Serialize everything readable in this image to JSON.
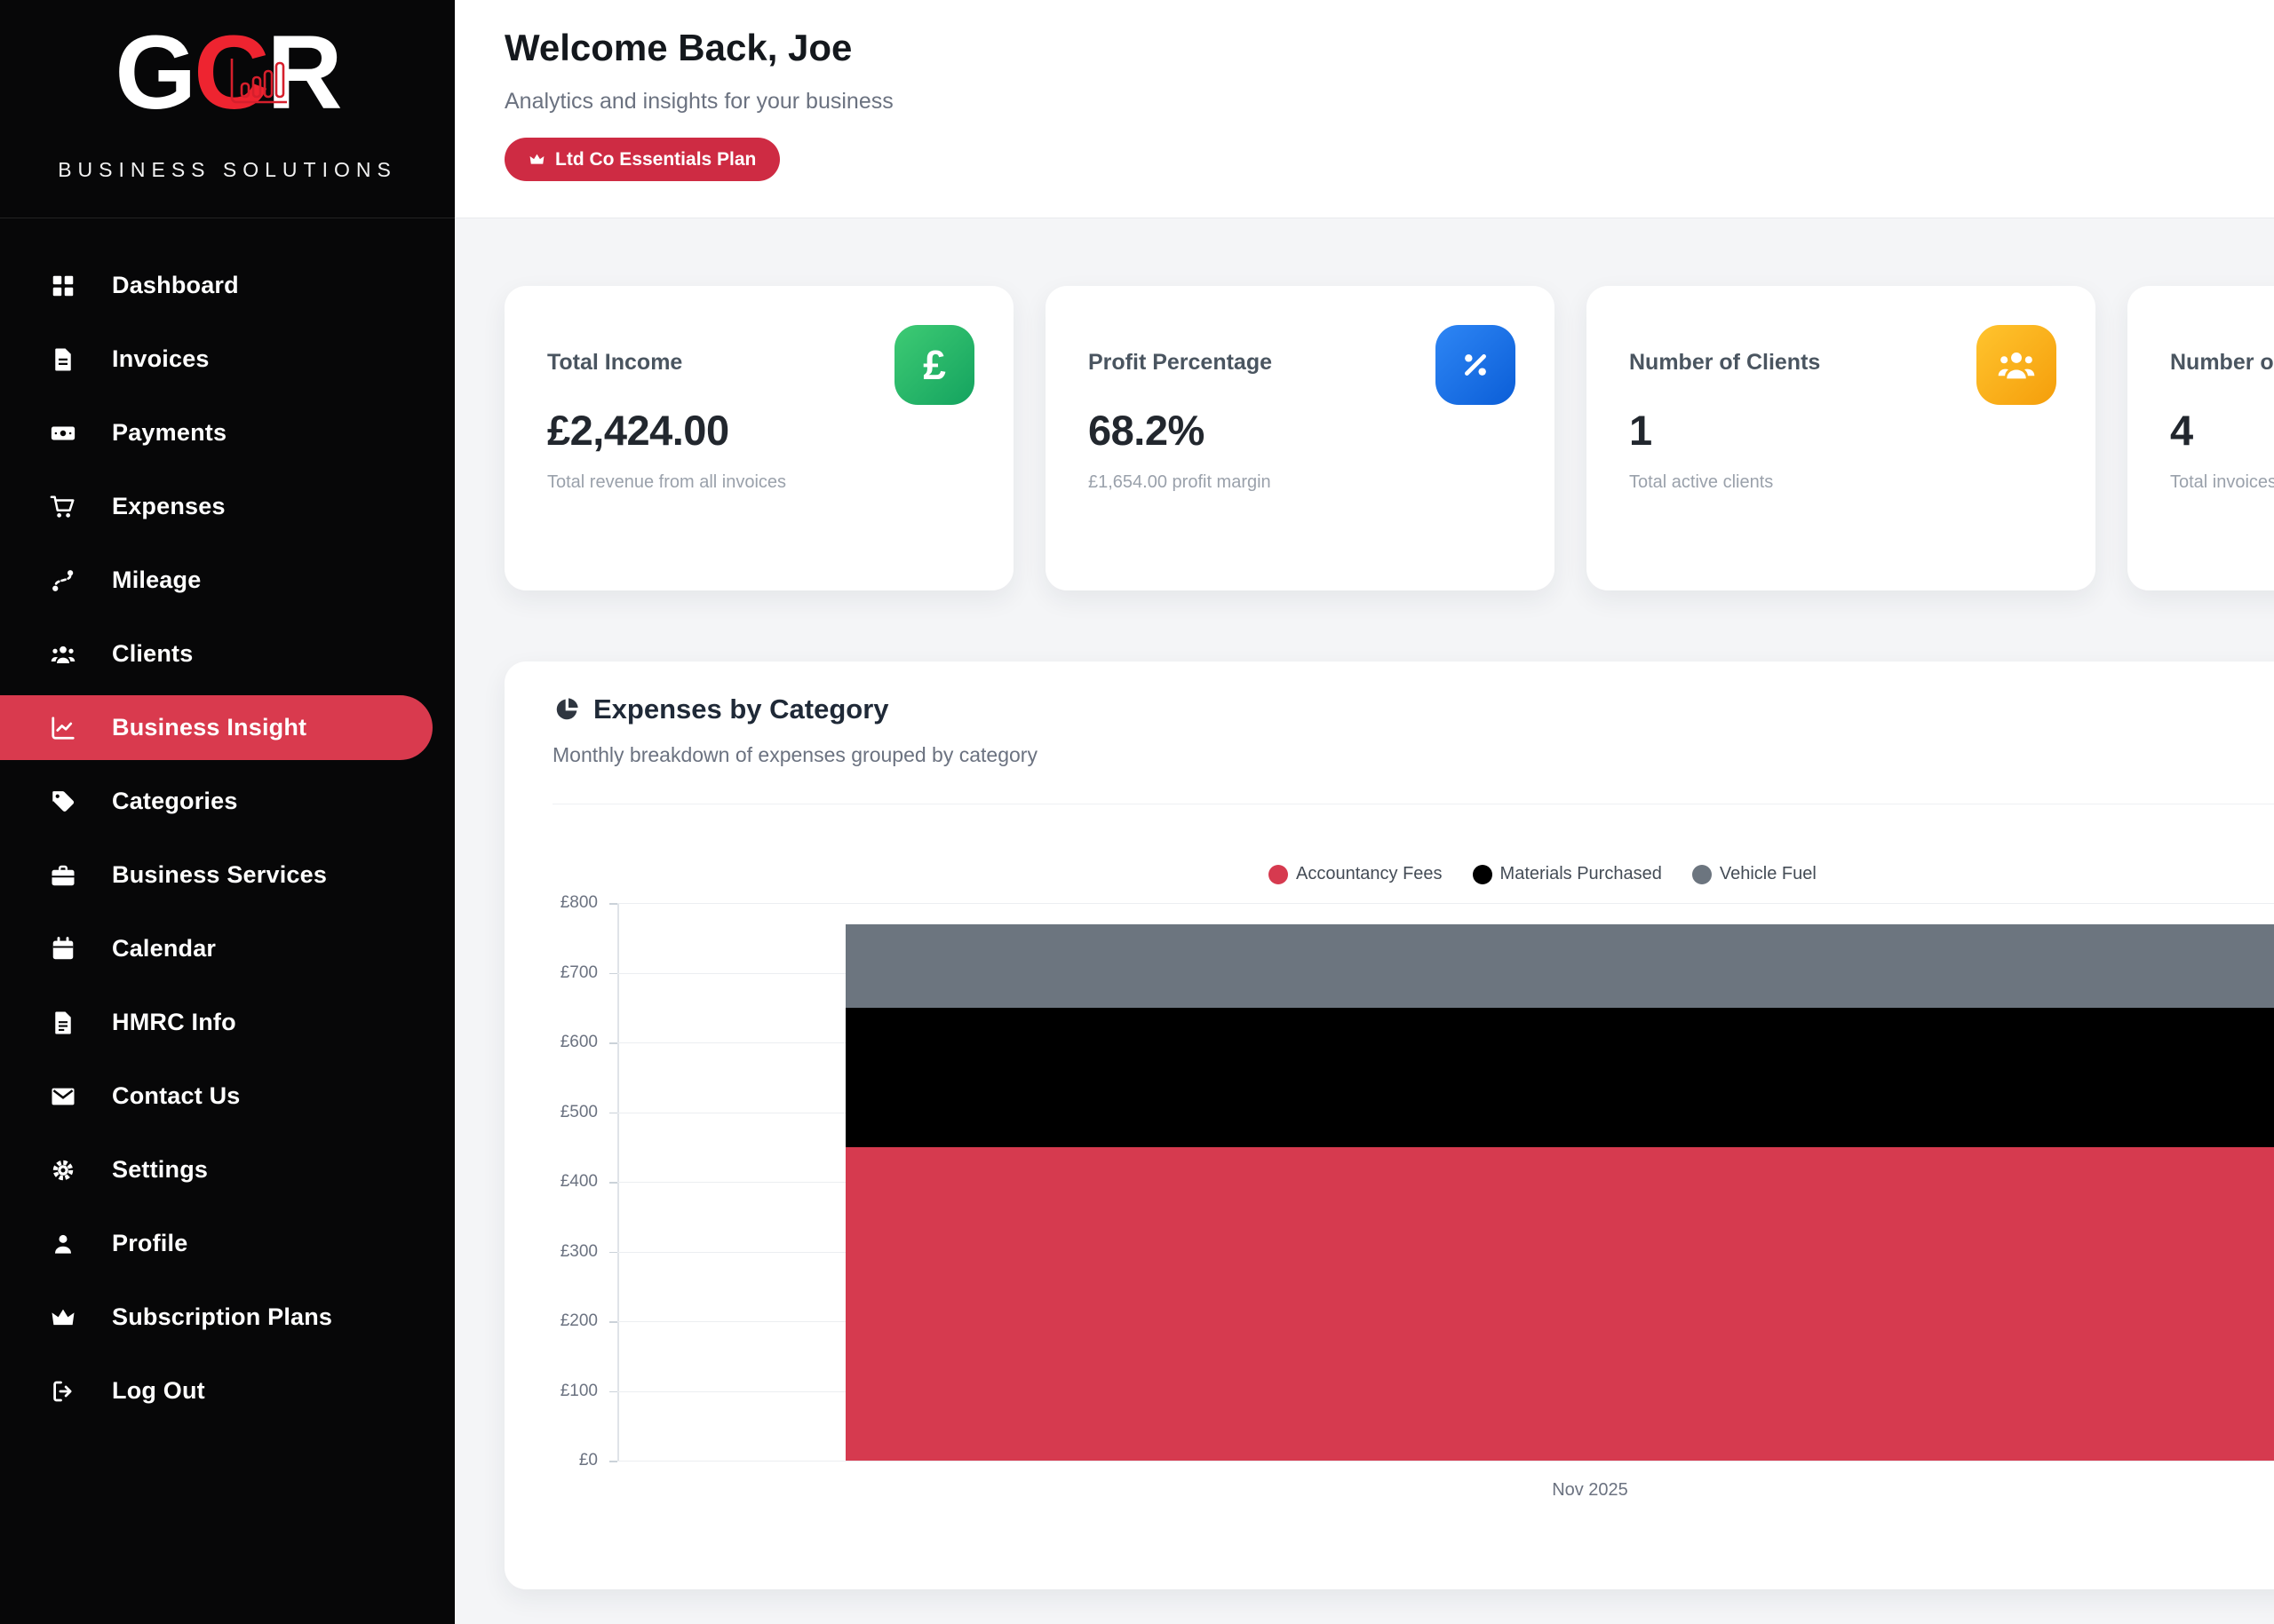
{
  "colors": {
    "accent": "#d93a4e",
    "badge_bg": "#ce2b43",
    "logo_red": "#ee2430",
    "sidebar_bg": "#070708",
    "page_bg": "#f4f5f7"
  },
  "sidebar": {
    "logo": {
      "letters": [
        "G",
        "C",
        "R"
      ],
      "caption": "BUSINESS SOLUTIONS"
    },
    "active_label": "Business Insight",
    "items": [
      {
        "label": "Dashboard",
        "icon": "dashboard-icon"
      },
      {
        "label": "Invoices",
        "icon": "invoice-icon"
      },
      {
        "label": "Payments",
        "icon": "banknote-icon"
      },
      {
        "label": "Expenses",
        "icon": "cart-icon"
      },
      {
        "label": "Mileage",
        "icon": "route-icon"
      },
      {
        "label": "Clients",
        "icon": "people-icon"
      },
      {
        "label": "Business Insight",
        "icon": "chart-line-icon"
      },
      {
        "label": "Categories",
        "icon": "tag-icon"
      },
      {
        "label": "Business Services",
        "icon": "briefcase-icon"
      },
      {
        "label": "Calendar",
        "icon": "calendar-icon"
      },
      {
        "label": "HMRC Info",
        "icon": "file-text-icon"
      },
      {
        "label": "Contact Us",
        "icon": "mail-icon"
      },
      {
        "label": "Settings",
        "icon": "gear-icon"
      },
      {
        "label": "Profile",
        "icon": "person-icon"
      },
      {
        "label": "Subscription Plans",
        "icon": "crown-icon"
      },
      {
        "label": "Log Out",
        "icon": "logout-icon"
      }
    ]
  },
  "header": {
    "title": "Welcome Back, Joe",
    "subtitle": "Analytics and insights for your business",
    "badge_label": "Ltd Co Essentials Plan"
  },
  "stats": [
    {
      "label": "Total Income",
      "value": "£2,424.00",
      "sub": "Total revenue from all invoices",
      "icon": "pound-icon",
      "icon_bg": [
        "#3ecb74",
        "#14a35f"
      ]
    },
    {
      "label": "Profit Percentage",
      "value": "68.2%",
      "sub": "£1,654.00 profit margin",
      "icon": "percent-icon",
      "icon_bg": [
        "#2e86f5",
        "#0b5ed7"
      ]
    },
    {
      "label": "Number of Clients",
      "value": "1",
      "sub": "Total active clients",
      "icon": "people-icon",
      "icon_bg": [
        "#ffc42e",
        "#f59e0b"
      ]
    },
    {
      "label": "Number of Invoices",
      "value": "4",
      "sub": "Total invoices",
      "icon": "",
      "icon_bg": null
    }
  ],
  "chart_card": {
    "title": "Expenses by Category",
    "subtitle": "Monthly breakdown of expenses grouped by category"
  },
  "chart_data": {
    "type": "bar",
    "stacked": true,
    "title": "Expenses by Category",
    "categories": [
      "Nov 2025"
    ],
    "series": [
      {
        "name": "Accountancy Fees",
        "color": "#d63a4f",
        "values": [
          450
        ]
      },
      {
        "name": "Materials Purchased",
        "color": "#000000",
        "values": [
          200
        ]
      },
      {
        "name": "Vehicle Fuel",
        "color": "#6c757f",
        "values": [
          120
        ]
      }
    ],
    "ylim": [
      0,
      800
    ],
    "ytick_step": 100,
    "currency": "£",
    "grid": true,
    "legend_position": "top",
    "xlabel": "",
    "ylabel": ""
  }
}
